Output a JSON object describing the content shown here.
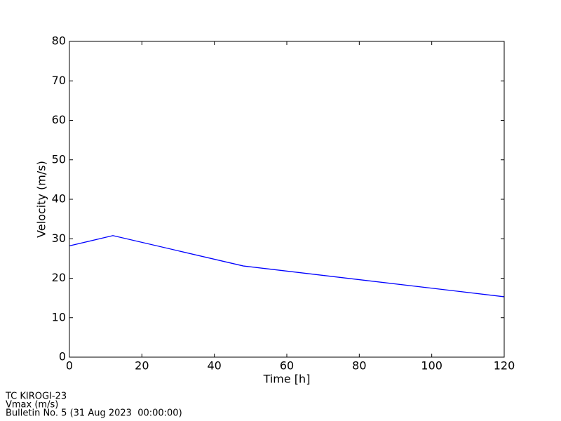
{
  "chart_data": {
    "type": "line",
    "x": [
      0,
      12,
      48,
      120
    ],
    "series": [
      {
        "name": "Vmax",
        "color": "#0000ff",
        "values": [
          28.2,
          30.8,
          23.1,
          15.3
        ]
      }
    ],
    "xlim": [
      0,
      120
    ],
    "xticks": [
      0,
      20,
      40,
      60,
      80,
      100,
      120
    ],
    "ylim": [
      0,
      80
    ],
    "yticks": [
      0,
      10,
      20,
      30,
      40,
      50,
      60,
      70,
      80
    ],
    "xlabel": "Time [h]",
    "ylabel": "Velocity (m/s)",
    "footer": [
      "TC KIROGI-23",
      "Vmax (m/s)",
      "Bulletin No. 5 (31 Aug 2023  00:00:00)"
    ]
  }
}
